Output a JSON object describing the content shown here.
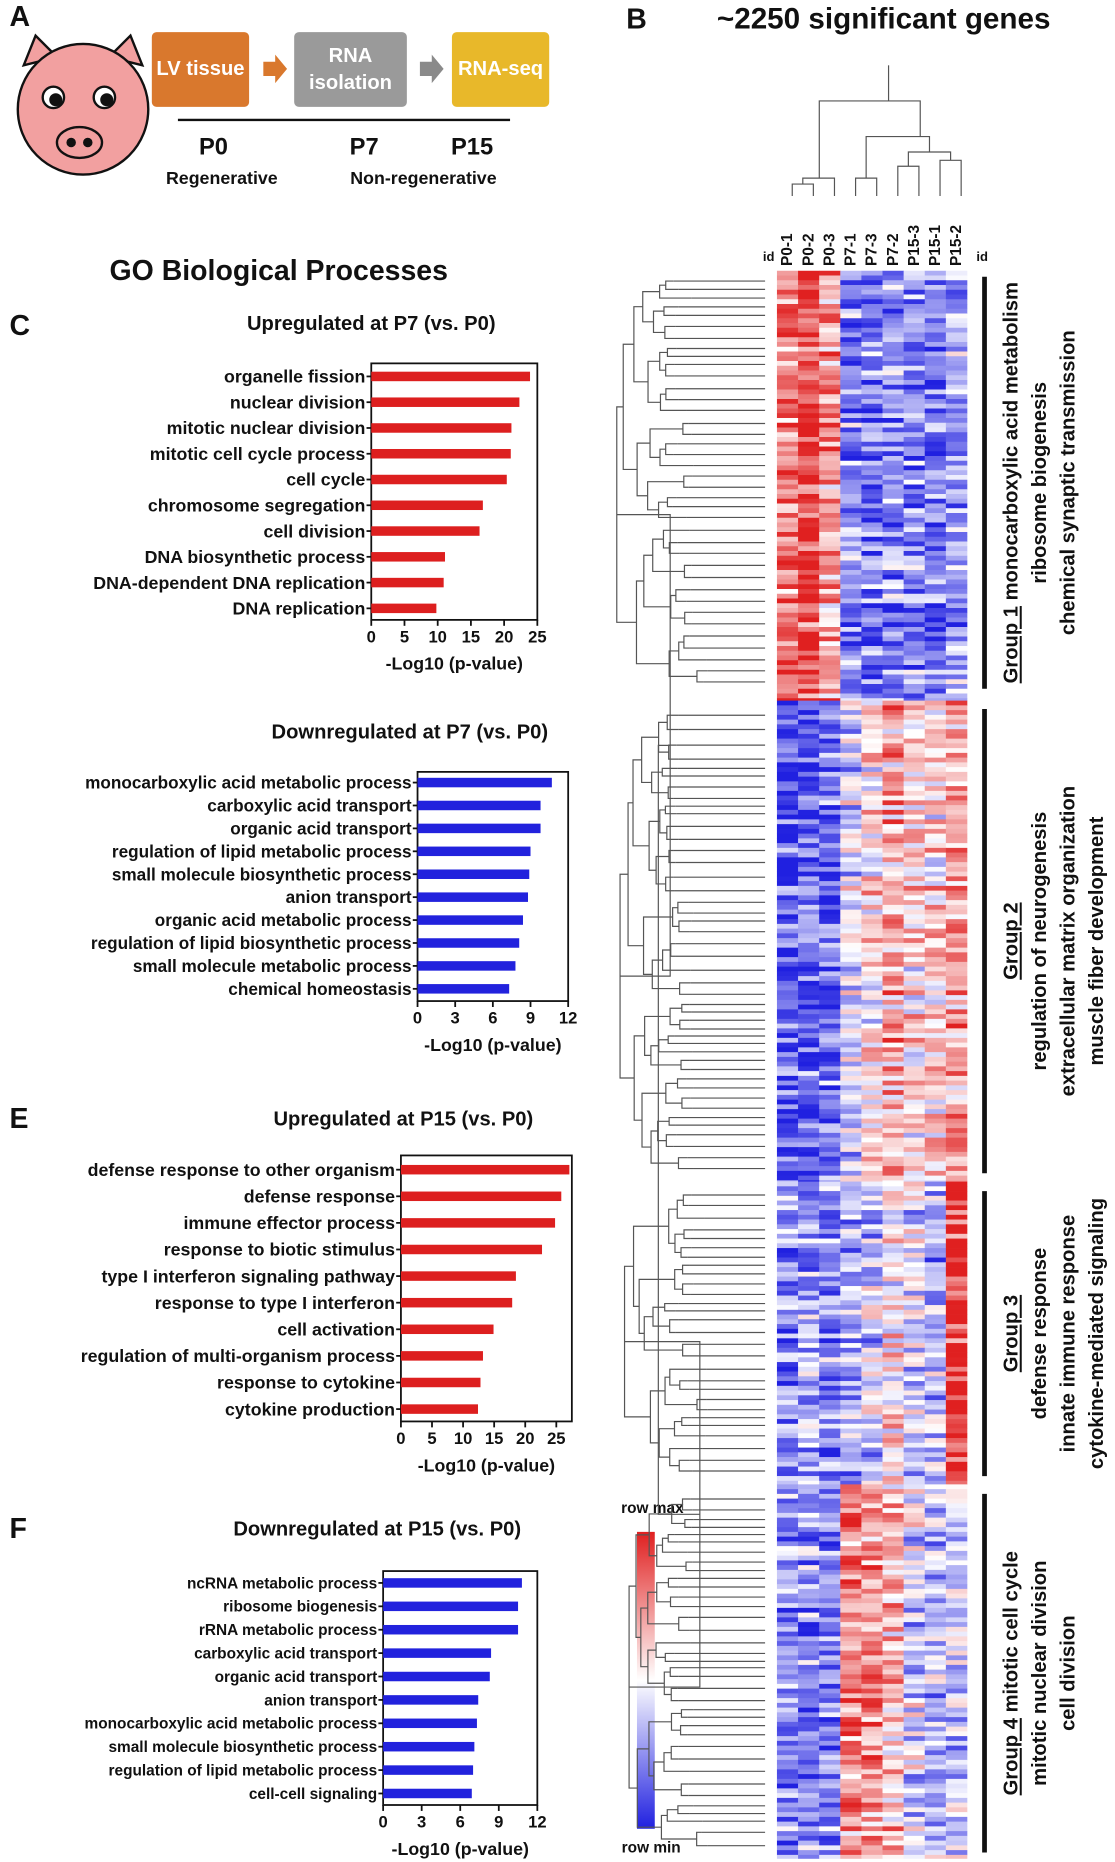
{
  "panel_a": {
    "label": "A",
    "steps": [
      "LV tissue",
      "RNA isolation",
      "RNA-seq"
    ],
    "timepoints": [
      "P0",
      "P7",
      "P15"
    ],
    "phases": [
      "Regenerative",
      "Non-regenerative"
    ]
  },
  "panel_b": {
    "label": "B",
    "title": "~2250 significant genes",
    "samples": [
      "P0-1",
      "P0-2",
      "P0-3",
      "P7-1",
      "P7-3",
      "P7-2",
      "P15-3",
      "P15-1",
      "P15-2"
    ],
    "id_label": "id",
    "legend": [
      "row max",
      "row min"
    ],
    "groups": [
      {
        "name": "Group 1",
        "terms": [
          "monocarboxylic acid metabolism",
          "ribosome biogenesis",
          "chemical synaptic transmission"
        ]
      },
      {
        "name": "Group 2",
        "terms": [
          "regulation of neurogenesis",
          "extracellular matrix organization",
          "muscle fiber development"
        ]
      },
      {
        "name": "Group 3",
        "terms": [
          "defense response",
          "innate immune response",
          "cytokine-mediated signaling"
        ]
      },
      {
        "name": "Group 4",
        "terms": [
          "mitotic cell cycle",
          "mitotic nuclear division",
          "cell division"
        ]
      }
    ]
  },
  "go_title": "GO Biological Processes",
  "chart_data": [
    {
      "type": "hbar",
      "panel": "C",
      "title": "Upregulated at P7 (vs. P0)",
      "color": "#dd1f1f",
      "categories": [
        "organelle fission",
        "nuclear division",
        "mitotic nuclear division",
        "mitotic cell cycle process",
        "cell cycle",
        "chromosome segregation",
        "cell division",
        "DNA biosynthetic process",
        "DNA-dependent DNA replication",
        "DNA replication"
      ],
      "values": [
        23.9,
        22.3,
        21.1,
        21,
        20.4,
        16.8,
        16.3,
        11.1,
        10.9,
        9.8
      ],
      "xlim": [
        0,
        25
      ],
      "xticks": [
        0,
        5,
        10,
        15,
        20,
        25
      ],
      "xlabel": "-Log10 (p-value)"
    },
    {
      "type": "hbar",
      "title": "Downregulated at P7 (vs. P0)",
      "color": "#2222dd",
      "categories": [
        "monocarboxylic acid metabolic process",
        "carboxylic acid transport",
        "organic acid transport",
        "regulation of lipid metabolic process",
        "small molecule biosynthetic process",
        "anion transport",
        "organic acid metabolic process",
        "regulation of lipid biosynthetic process",
        "small molecule metabolic process",
        "chemical homeostasis"
      ],
      "values": [
        10.7,
        9.8,
        9.8,
        9,
        8.9,
        8.8,
        8.4,
        8.1,
        7.8,
        7.3
      ],
      "xlim": [
        0,
        12
      ],
      "xticks": [
        0,
        3,
        6,
        9,
        12
      ],
      "xlabel": "-Log10 (p-value)"
    },
    {
      "type": "hbar",
      "panel": "E",
      "title": "Upregulated at P15 (vs. P0)",
      "color": "#dd1f1f",
      "categories": [
        "defense response to other organism",
        "defense response",
        "immune effector process",
        "response to biotic stimulus",
        "type I interferon signaling pathway",
        "response to type I interferon",
        "cell activation",
        "regulation of multi-organism process",
        "response to cytokine",
        "cytokine production"
      ],
      "values": [
        27.1,
        25.8,
        24.8,
        22.7,
        18.5,
        17.9,
        14.9,
        13.2,
        12.8,
        12.4
      ],
      "xlim": [
        0,
        27.5
      ],
      "xticks": [
        0,
        5,
        10,
        15,
        20,
        25
      ],
      "xlabel": "-Log10 (p-value)"
    },
    {
      "type": "hbar",
      "panel": "F",
      "title": "Downregulated at P15 (vs. P0)",
      "color": "#2222dd",
      "categories": [
        "ncRNA metabolic process",
        "ribosome biogenesis",
        "rRNA metabolic process",
        "carboxylic acid transport",
        "organic acid transport",
        "anion transport",
        "monocarboxylic acid metabolic process",
        "small molecule biosynthetic process",
        "regulation of lipid metabolic process",
        "cell-cell signaling"
      ],
      "values": [
        10.8,
        10.5,
        10.5,
        8.4,
        8.3,
        7.4,
        7.3,
        7.1,
        7,
        6.9
      ],
      "xlim": [
        0,
        12
      ],
      "xticks": [
        0,
        3,
        6,
        9,
        12
      ],
      "xlabel": "-Log10 (p-value)"
    }
  ]
}
